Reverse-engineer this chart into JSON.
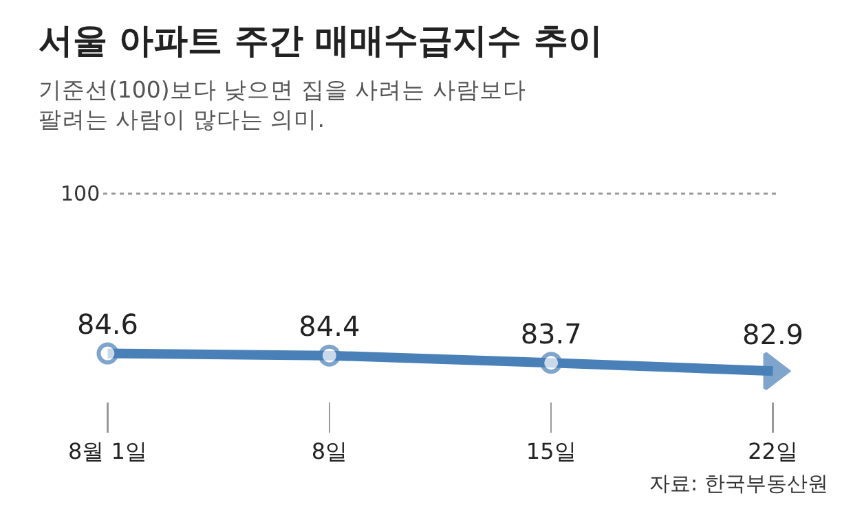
{
  "chart_data": {
    "type": "line",
    "title": "서울 아파트 주간 매매수급지수 추이",
    "subtitle": "기준선(100)보다 낮으면 집을 사려는 사람보다\n팔려는 사람이 많다는 의미.",
    "categories": [
      "8월 1일",
      "8일",
      "15일",
      "22일"
    ],
    "series": [
      {
        "color": "#4a80b8",
        "values": [
          84.6,
          84.4,
          83.7,
          82.9
        ]
      }
    ],
    "tick_labels": "x",
    "grid": false,
    "marker": "circle",
    "line_style": "solid",
    "data_labels": true,
    "ref_lines": [
      {
        "axis": "y",
        "value": 100,
        "label": "100",
        "color": "#999999",
        "line_style": "dotted"
      }
    ],
    "annotations": [
      "자료: 한국부동산원"
    ]
  }
}
